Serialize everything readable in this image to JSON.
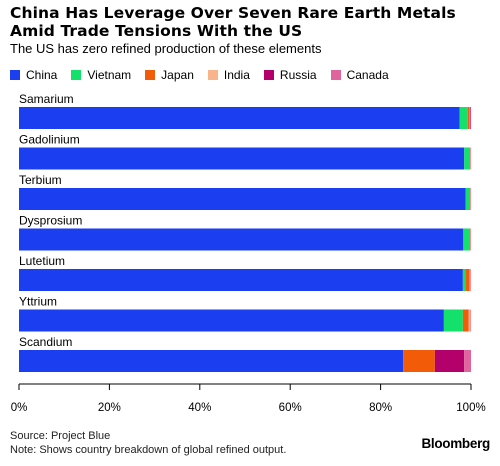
{
  "header": {
    "title": "China Has Leverage Over Seven Rare Earth Metals Amid Trade Tensions With the US",
    "subtitle": "The US has zero refined production of these elements"
  },
  "footer": {
    "source": "Source: Project Blue",
    "note": "Note: Shows country breakdown of global refined output.",
    "brand": "Bloomberg"
  },
  "chart_data": {
    "type": "bar",
    "orientation": "horizontal",
    "stacked": true,
    "categories": [
      "Samarium",
      "Gadolinium",
      "Terbium",
      "Dysprosium",
      "Lutetium",
      "Yttrium",
      "Scandium"
    ],
    "series": [
      {
        "name": "China",
        "color": "#1a3ef0",
        "values": [
          97.5,
          98.5,
          98.8,
          98.3,
          98.2,
          94.0,
          85.0
        ]
      },
      {
        "name": "Vietnam",
        "color": "#13e16b",
        "values": [
          1.8,
          1.2,
          0.9,
          1.4,
          0.6,
          4.2,
          0.0
        ]
      },
      {
        "name": "Japan",
        "color": "#f25b08",
        "values": [
          0.4,
          0.1,
          0.1,
          0.1,
          0.9,
          1.3,
          7.0
        ]
      },
      {
        "name": "India",
        "color": "#f9b48b",
        "values": [
          0.1,
          0.1,
          0.1,
          0.1,
          0.2,
          0.4,
          0.0
        ]
      },
      {
        "name": "Russia",
        "color": "#b3006a",
        "values": [
          0.1,
          0.0,
          0.0,
          0.0,
          0.0,
          0.0,
          6.5
        ]
      },
      {
        "name": "Canada",
        "color": "#e0649e",
        "values": [
          0.1,
          0.1,
          0.1,
          0.1,
          0.1,
          0.1,
          1.5
        ]
      }
    ],
    "xlim": [
      0,
      100
    ],
    "xticks": [
      "0%",
      "20%",
      "40%",
      "60%",
      "80%",
      "100%"
    ],
    "grid": false,
    "legend_position": "top-left"
  }
}
